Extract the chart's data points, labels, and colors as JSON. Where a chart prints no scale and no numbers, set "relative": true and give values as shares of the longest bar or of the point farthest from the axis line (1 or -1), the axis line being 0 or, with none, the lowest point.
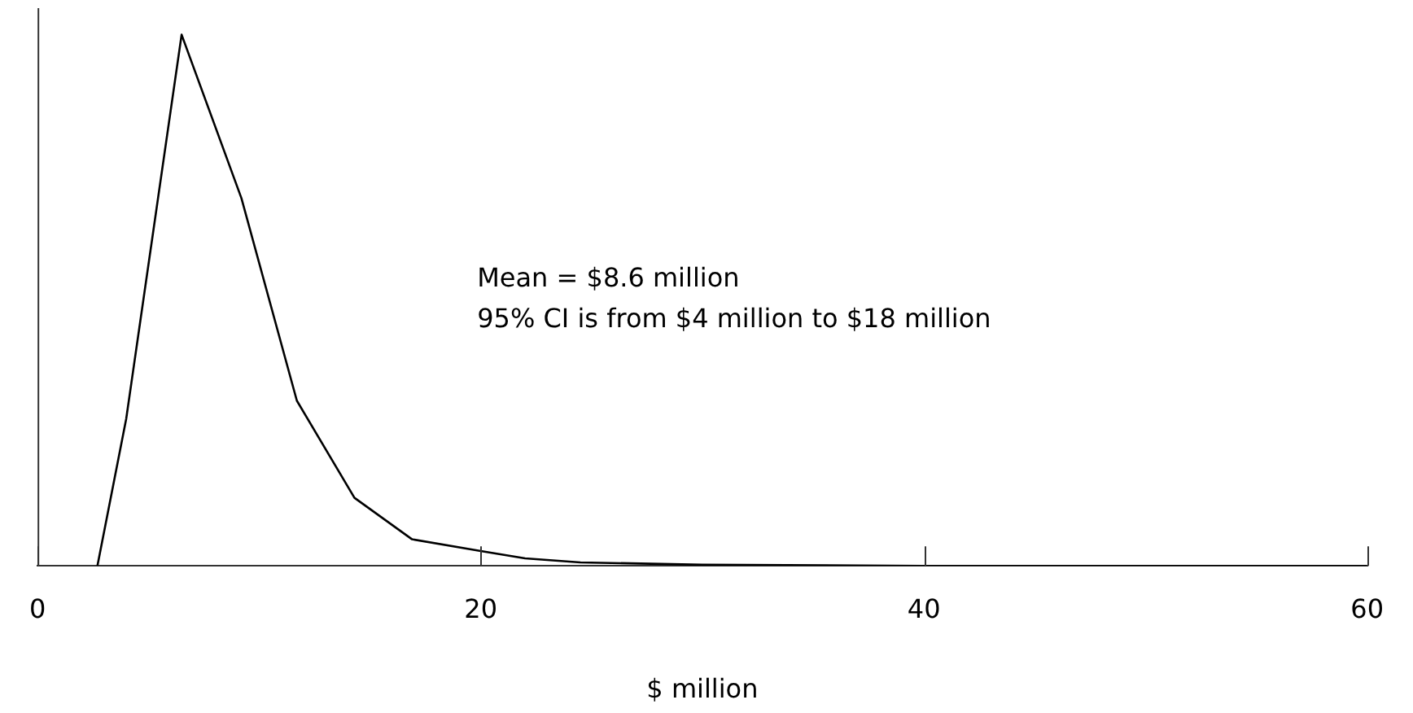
{
  "chart_data": {
    "type": "line",
    "relative": true,
    "xlabel": "$ million",
    "x": [
      2.7,
      4.0,
      6.5,
      9.2,
      11.7,
      14.3,
      16.9,
      20.0,
      22.0,
      24.5,
      30,
      40,
      60
    ],
    "series": [
      {
        "color": "#000000",
        "values": [
          0,
          0.277,
          1,
          0.692,
          0.311,
          0.128,
          0.05,
          0.028,
          0.014,
          0.0065,
          0.002,
          0,
          0
        ]
      }
    ],
    "xlim": [
      0,
      60
    ],
    "xticks": [
      0,
      20,
      40,
      60
    ],
    "grid": false,
    "legend": false,
    "marker": "none",
    "line_style": "solid",
    "annotations": [
      "Mean = $8.6 million",
      "95% CI is from $4 million to $18 million"
    ]
  }
}
